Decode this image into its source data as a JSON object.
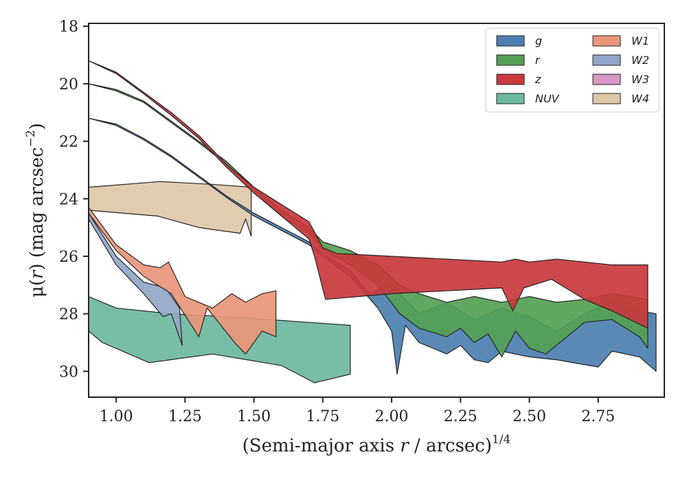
{
  "chart_data": {
    "type": "area",
    "xlabel_main": "(Semi-major axis ",
    "xlabel_var": "r",
    "xlabel_rest": " / arcsec)",
    "xlabel_sup": "1/4",
    "ylabel_main": "μ(",
    "ylabel_var": "r",
    "ylabel_rest": ") (mag arcsec",
    "ylabel_sup": "−2",
    "ylabel_end": ")",
    "xlim": [
      0.9,
      2.99
    ],
    "ylim": [
      30.9,
      17.9
    ],
    "xticks": [
      1.0,
      1.25,
      1.5,
      1.75,
      2.0,
      2.25,
      2.5,
      2.75
    ],
    "xtick_labels": [
      "1.00",
      "1.25",
      "1.50",
      "1.75",
      "2.00",
      "2.25",
      "2.50",
      "2.75"
    ],
    "yticks": [
      18,
      20,
      22,
      24,
      26,
      28,
      30
    ],
    "ytick_labels": [
      "18",
      "20",
      "22",
      "24",
      "26",
      "28",
      "30"
    ],
    "legend_position": "top-right",
    "series": [
      {
        "name": "g",
        "color": "#4c7fb0",
        "upper": [
          [
            0.9,
            21.2
          ],
          [
            1.0,
            21.4
          ],
          [
            1.1,
            21.9
          ],
          [
            1.2,
            22.5
          ],
          [
            1.3,
            23.2
          ],
          [
            1.4,
            23.9
          ],
          [
            1.5,
            24.5
          ],
          [
            1.6,
            25.0
          ],
          [
            1.7,
            25.5
          ],
          [
            1.75,
            25.9
          ],
          [
            1.85,
            26.5
          ],
          [
            1.92,
            27.3
          ],
          [
            2.0,
            27.0
          ],
          [
            2.1,
            28.0
          ],
          [
            2.2,
            27.6
          ],
          [
            2.3,
            28.2
          ],
          [
            2.4,
            27.8
          ],
          [
            2.5,
            28.1
          ],
          [
            2.6,
            28.6
          ],
          [
            2.7,
            28.0
          ],
          [
            2.8,
            27.6
          ],
          [
            2.9,
            27.9
          ],
          [
            2.96,
            28.0
          ]
        ],
        "lower": [
          [
            0.9,
            21.2
          ],
          [
            1.0,
            21.45
          ],
          [
            1.1,
            21.95
          ],
          [
            1.2,
            22.55
          ],
          [
            1.3,
            23.25
          ],
          [
            1.4,
            23.95
          ],
          [
            1.5,
            24.6
          ],
          [
            1.6,
            25.1
          ],
          [
            1.7,
            25.6
          ],
          [
            1.75,
            26.0
          ],
          [
            1.85,
            26.7
          ],
          [
            1.95,
            27.8
          ],
          [
            2.0,
            28.6
          ],
          [
            2.02,
            30.1
          ],
          [
            2.05,
            28.4
          ],
          [
            2.1,
            29.0
          ],
          [
            2.2,
            29.4
          ],
          [
            2.25,
            29.1
          ],
          [
            2.3,
            29.6
          ],
          [
            2.35,
            29.7
          ],
          [
            2.4,
            29.3
          ],
          [
            2.5,
            29.5
          ],
          [
            2.6,
            29.6
          ],
          [
            2.75,
            29.85
          ],
          [
            2.8,
            29.3
          ],
          [
            2.9,
            29.5
          ],
          [
            2.96,
            30.0
          ]
        ]
      },
      {
        "name": "r",
        "color": "#55a054",
        "upper": [
          [
            0.9,
            20.0
          ],
          [
            1.0,
            20.2
          ],
          [
            1.1,
            20.6
          ],
          [
            1.2,
            21.3
          ],
          [
            1.3,
            22.0
          ],
          [
            1.4,
            22.7
          ],
          [
            1.5,
            23.6
          ],
          [
            1.6,
            24.4
          ],
          [
            1.7,
            25.0
          ],
          [
            1.75,
            25.5
          ],
          [
            1.85,
            25.8
          ],
          [
            1.95,
            26.3
          ],
          [
            2.03,
            27.0
          ],
          [
            2.1,
            27.3
          ],
          [
            2.2,
            27.6
          ],
          [
            2.3,
            27.4
          ],
          [
            2.4,
            27.6
          ],
          [
            2.5,
            27.4
          ],
          [
            2.6,
            27.6
          ],
          [
            2.7,
            27.5
          ],
          [
            2.8,
            27.3
          ],
          [
            2.93,
            27.5
          ]
        ],
        "lower": [
          [
            0.9,
            20.0
          ],
          [
            1.0,
            20.25
          ],
          [
            1.1,
            20.65
          ],
          [
            1.2,
            21.35
          ],
          [
            1.3,
            22.05
          ],
          [
            1.4,
            22.8
          ],
          [
            1.5,
            23.7
          ],
          [
            1.6,
            24.6
          ],
          [
            1.7,
            25.2
          ],
          [
            1.75,
            25.8
          ],
          [
            1.85,
            26.3
          ],
          [
            1.95,
            27.0
          ],
          [
            2.03,
            28.0
          ],
          [
            2.1,
            28.5
          ],
          [
            2.2,
            28.8
          ],
          [
            2.25,
            28.5
          ],
          [
            2.3,
            29.0
          ],
          [
            2.35,
            28.7
          ],
          [
            2.4,
            29.5
          ],
          [
            2.45,
            28.6
          ],
          [
            2.5,
            29.2
          ],
          [
            2.56,
            29.4
          ],
          [
            2.7,
            28.3
          ],
          [
            2.8,
            28.2
          ],
          [
            2.9,
            28.8
          ],
          [
            2.93,
            29.2
          ]
        ]
      },
      {
        "name": "z",
        "color": "#c8383c",
        "upper": [
          [
            0.9,
            19.2
          ],
          [
            1.0,
            19.6
          ],
          [
            1.1,
            20.3
          ],
          [
            1.2,
            21.0
          ],
          [
            1.3,
            21.8
          ],
          [
            1.4,
            22.8
          ],
          [
            1.5,
            23.6
          ],
          [
            1.6,
            24.2
          ],
          [
            1.7,
            24.8
          ],
          [
            1.75,
            25.7
          ],
          [
            1.8,
            25.9
          ],
          [
            2.0,
            26.0
          ],
          [
            2.2,
            26.1
          ],
          [
            2.4,
            26.2
          ],
          [
            2.45,
            26.1
          ],
          [
            2.5,
            26.2
          ],
          [
            2.6,
            26.1
          ],
          [
            2.7,
            26.2
          ],
          [
            2.8,
            26.3
          ],
          [
            2.93,
            26.3
          ]
        ],
        "lower": [
          [
            0.9,
            19.2
          ],
          [
            1.0,
            19.65
          ],
          [
            1.1,
            20.35
          ],
          [
            1.2,
            21.1
          ],
          [
            1.3,
            21.9
          ],
          [
            1.4,
            22.9
          ],
          [
            1.5,
            23.8
          ],
          [
            1.6,
            24.6
          ],
          [
            1.65,
            25.0
          ],
          [
            1.7,
            25.4
          ],
          [
            1.72,
            26.0
          ],
          [
            1.76,
            27.5
          ],
          [
            2.0,
            27.3
          ],
          [
            2.2,
            27.2
          ],
          [
            2.4,
            27.1
          ],
          [
            2.44,
            27.9
          ],
          [
            2.48,
            27.1
          ],
          [
            2.58,
            26.8
          ],
          [
            2.7,
            27.5
          ],
          [
            2.8,
            27.9
          ],
          [
            2.93,
            28.5
          ]
        ]
      },
      {
        "name": "NUV",
        "color": "#6db8a0",
        "upper": [
          [
            0.9,
            27.4
          ],
          [
            1.0,
            27.8
          ],
          [
            1.2,
            28.0
          ],
          [
            1.4,
            28.1
          ],
          [
            1.7,
            28.3
          ],
          [
            1.85,
            28.4
          ]
        ],
        "lower": [
          [
            0.9,
            28.6
          ],
          [
            0.95,
            29.0
          ],
          [
            1.12,
            29.7
          ],
          [
            1.35,
            29.4
          ],
          [
            1.6,
            29.8
          ],
          [
            1.72,
            30.4
          ],
          [
            1.85,
            30.1
          ]
        ]
      },
      {
        "name": "W1",
        "color": "#e9967a",
        "upper": [
          [
            0.9,
            24.3
          ],
          [
            1.0,
            25.6
          ],
          [
            1.1,
            26.3
          ],
          [
            1.16,
            26.4
          ],
          [
            1.19,
            26.2
          ],
          [
            1.25,
            27.4
          ],
          [
            1.3,
            27.6
          ],
          [
            1.35,
            27.8
          ],
          [
            1.42,
            27.3
          ],
          [
            1.47,
            27.6
          ],
          [
            1.53,
            27.3
          ],
          [
            1.58,
            27.2
          ]
        ],
        "lower": [
          [
            0.9,
            24.5
          ],
          [
            1.0,
            25.8
          ],
          [
            1.1,
            26.7
          ],
          [
            1.2,
            27.3
          ],
          [
            1.26,
            28.2
          ],
          [
            1.3,
            28.8
          ],
          [
            1.33,
            27.8
          ],
          [
            1.38,
            28.4
          ],
          [
            1.43,
            29.0
          ],
          [
            1.47,
            29.4
          ],
          [
            1.53,
            28.6
          ],
          [
            1.58,
            28.8
          ]
        ]
      },
      {
        "name": "W2",
        "color": "#94a6c8",
        "upper": [
          [
            0.9,
            24.5
          ],
          [
            1.0,
            26.0
          ],
          [
            1.1,
            26.9
          ],
          [
            1.18,
            27.1
          ],
          [
            1.23,
            27.8
          ]
        ],
        "lower": [
          [
            0.9,
            24.7
          ],
          [
            1.0,
            26.3
          ],
          [
            1.1,
            27.3
          ],
          [
            1.17,
            28.1
          ],
          [
            1.2,
            28.0
          ],
          [
            1.24,
            29.1
          ]
        ]
      },
      {
        "name": "W3",
        "color": "#d896c8",
        "upper": [],
        "lower": []
      },
      {
        "name": "W4",
        "color": "#dfc8a8",
        "upper": [
          [
            0.9,
            23.6
          ],
          [
            1.16,
            23.4
          ],
          [
            1.35,
            23.5
          ],
          [
            1.49,
            23.6
          ]
        ],
        "lower": [
          [
            0.9,
            24.4
          ],
          [
            1.15,
            24.6
          ],
          [
            1.3,
            25.0
          ],
          [
            1.45,
            25.2
          ],
          [
            1.47,
            24.7
          ],
          [
            1.49,
            25.3
          ]
        ]
      }
    ]
  }
}
